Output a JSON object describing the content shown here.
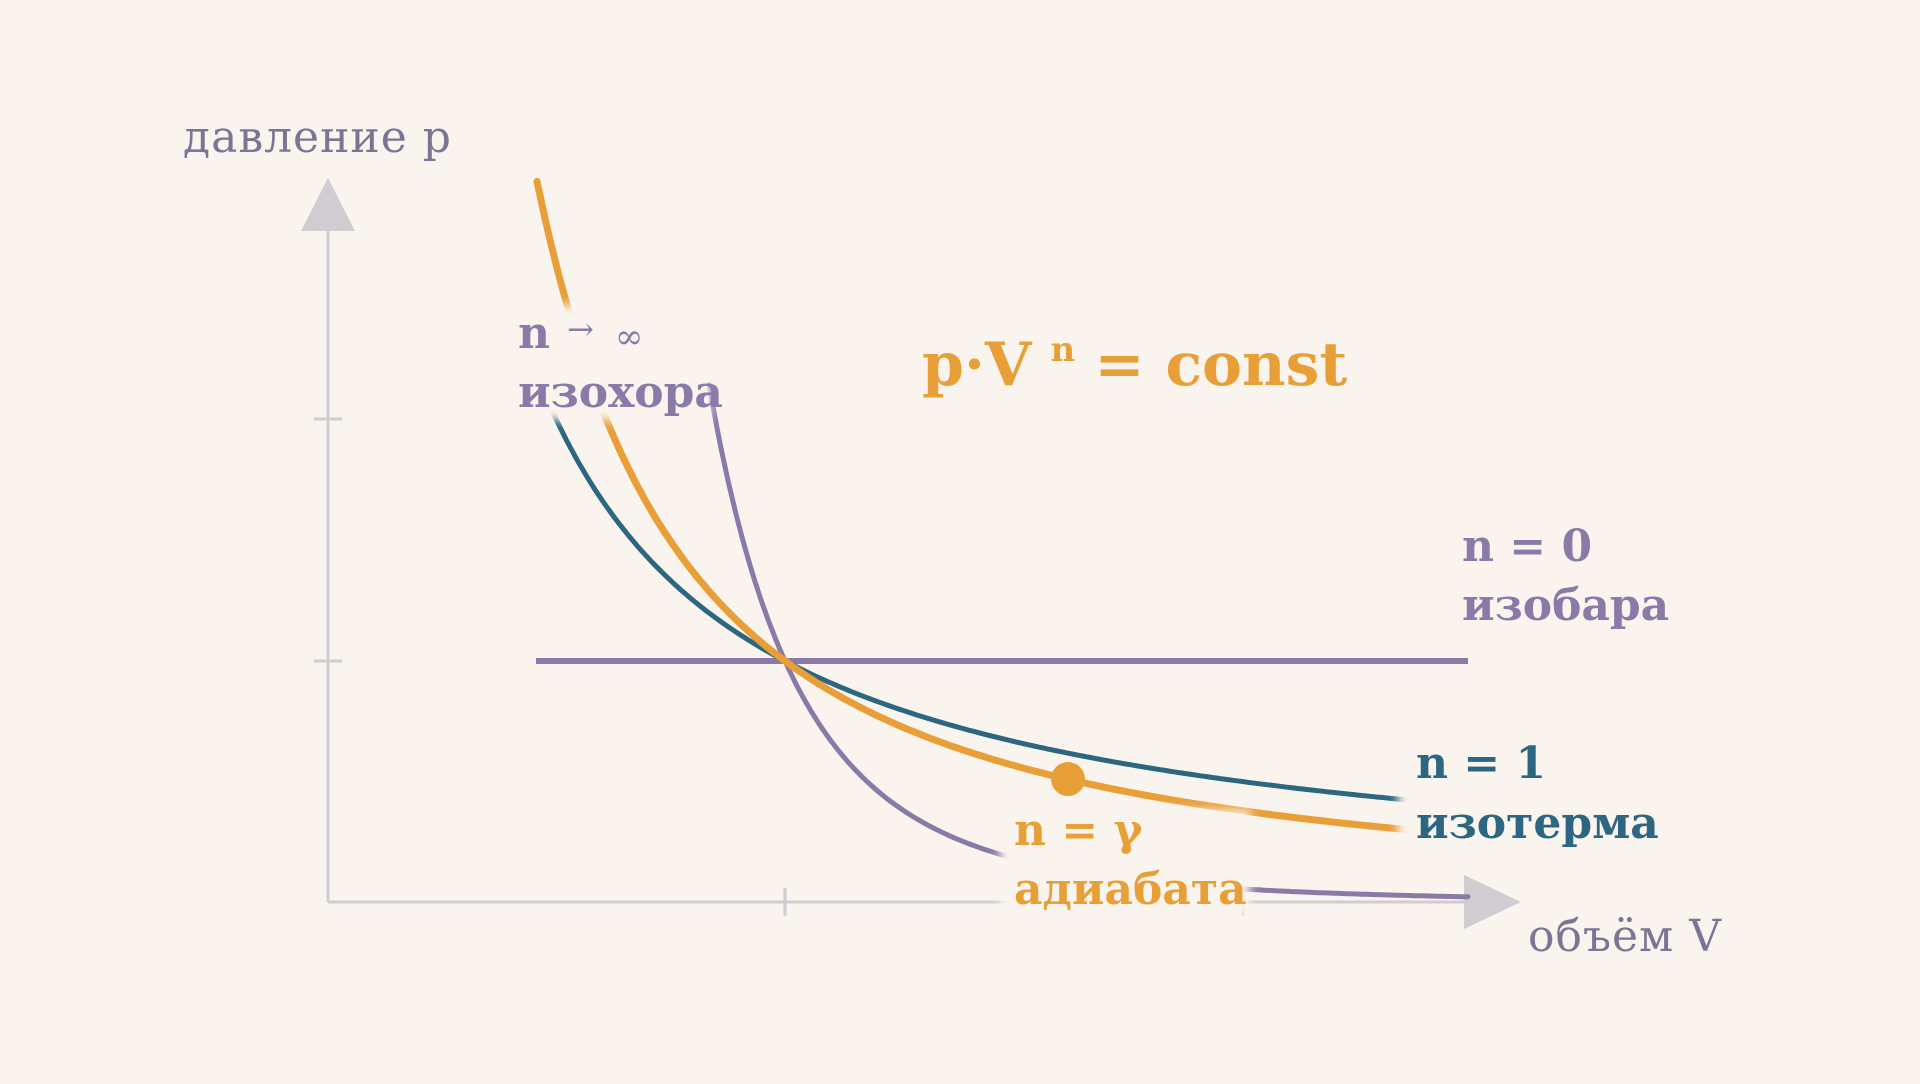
{
  "colors": {
    "background": "#faf4ee",
    "axis": "#d0ccd2",
    "axis_text": "#7d7394",
    "purple": "#8b7aa8",
    "teal": "#2c6680",
    "orange": "#e89f38"
  },
  "axes": {
    "y_label": "давление p",
    "x_label": "объём V"
  },
  "formula": {
    "base": "p·V",
    "exponent": "n",
    "rest": "= const"
  },
  "curves": {
    "isochore": {
      "name": "изохора",
      "exponent_label": "n",
      "arrow": "→",
      "infinity": "∞"
    },
    "isobar": {
      "exponent_label": "n = 0",
      "name": "изобара"
    },
    "isotherm": {
      "exponent_label": "n = 1",
      "name": "изотерма"
    },
    "adiabat": {
      "exponent_label": "n = γ",
      "name": "адиабата"
    }
  }
}
